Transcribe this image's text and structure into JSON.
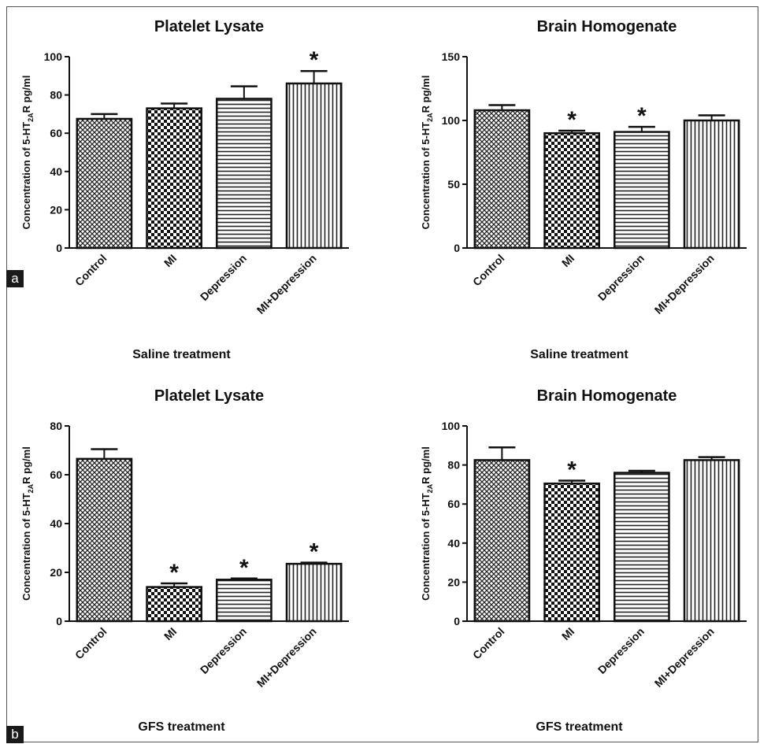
{
  "panel_labels": [
    "a",
    "b"
  ],
  "chart_data": [
    {
      "type": "bar",
      "title": "Platelet Lysate",
      "xlabel": "Saline treatment",
      "ylabel": "Concentration of 5-HT2AR pg/ml",
      "ylabel_parts": {
        "pre": "Concentration of 5-HT",
        "sub": "2A",
        "post": "R pg/ml"
      },
      "categories": [
        "Control",
        "MI",
        "Depression",
        "MI+Depression"
      ],
      "values": [
        67.5,
        73,
        78,
        86
      ],
      "errors": [
        2.5,
        2.5,
        6.5,
        6.5
      ],
      "significant": [
        false,
        false,
        false,
        true
      ],
      "significance_marker": "*",
      "ylim": [
        0,
        100
      ],
      "yticks": [
        0,
        20,
        40,
        60,
        80,
        100
      ],
      "patterns": [
        "crosshatch",
        "checker",
        "hlines",
        "vlines"
      ]
    },
    {
      "type": "bar",
      "title": "Brain Homogenate",
      "xlabel": "Saline treatment",
      "ylabel": "Concentration of 5-HT2AR pg/ml",
      "ylabel_parts": {
        "pre": "Concentration of 5-HT",
        "sub": "2A",
        "post": "R pg/ml"
      },
      "categories": [
        "Control",
        "MI",
        "Depression",
        "MI+Depression"
      ],
      "values": [
        108,
        90,
        91,
        100
      ],
      "errors": [
        4,
        2,
        4,
        4
      ],
      "significant": [
        false,
        true,
        true,
        false
      ],
      "significance_marker": "*",
      "ylim": [
        0,
        150
      ],
      "yticks": [
        0,
        50,
        100,
        150
      ],
      "patterns": [
        "crosshatch",
        "checker",
        "hlines",
        "vlines"
      ]
    },
    {
      "type": "bar",
      "title": "Platelet Lysate",
      "xlabel": "GFS treatment",
      "ylabel": "Concentration of 5-HT2AR pg/ml",
      "ylabel_parts": {
        "pre": "Concentration of 5-HT",
        "sub": "2A",
        "post": "R pg/ml"
      },
      "categories": [
        "Control",
        "MI",
        "Depression",
        "MI+Depression"
      ],
      "values": [
        66.5,
        14,
        17,
        23.5
      ],
      "errors": [
        4,
        1.5,
        0.5,
        0.5
      ],
      "significant": [
        false,
        true,
        true,
        true
      ],
      "significance_marker": "*",
      "ylim": [
        0,
        80
      ],
      "yticks": [
        0,
        20,
        40,
        60,
        80
      ],
      "patterns": [
        "crosshatch",
        "checker",
        "hlines",
        "vlines"
      ]
    },
    {
      "type": "bar",
      "title": "Brain Homogenate",
      "xlabel": "GFS treatment",
      "ylabel": "Concentration of 5-HT2AR pg/ml",
      "ylabel_parts": {
        "pre": "Concentration of 5-HT",
        "sub": "2A",
        "post": "R pg/ml"
      },
      "categories": [
        "Control",
        "MI",
        "Depression",
        "MI+Depression"
      ],
      "values": [
        82.5,
        70.5,
        76,
        82.5
      ],
      "errors": [
        6.5,
        1.5,
        1,
        1.5
      ],
      "significant": [
        false,
        true,
        false,
        false
      ],
      "significance_marker": "*",
      "ylim": [
        0,
        100
      ],
      "yticks": [
        0,
        20,
        40,
        60,
        80,
        100
      ],
      "patterns": [
        "crosshatch",
        "checker",
        "hlines",
        "vlines"
      ]
    }
  ]
}
